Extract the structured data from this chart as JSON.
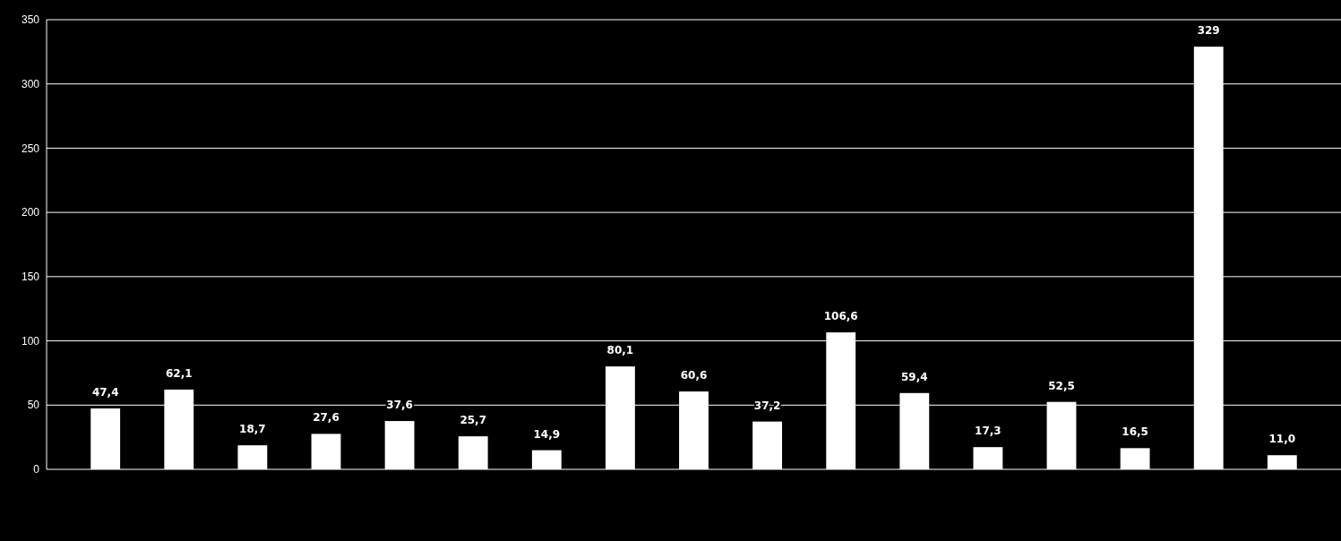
{
  "chart_data": {
    "type": "bar",
    "categories": [
      null,
      null,
      null,
      null,
      null,
      null,
      null,
      null,
      null,
      null,
      null,
      null,
      null,
      null,
      null,
      null,
      null
    ],
    "values": [
      47.4,
      62.1,
      18.7,
      27.6,
      37.6,
      25.7,
      14.9,
      80.1,
      60.6,
      37.2,
      106.6,
      59.4,
      17.3,
      52.5,
      16.5,
      329,
      11.0
    ],
    "value_labels": [
      "47,4",
      "62,1",
      "18,7",
      "27,6",
      "37,6",
      "25,7",
      "14,9",
      "80,1",
      "60,6",
      "37,2",
      "106,6",
      "59,4",
      "17,3",
      "52,5",
      "16,5",
      "329",
      "11,0"
    ],
    "color": "#ffffff",
    "ylim": [
      0,
      350
    ],
    "yticks": [
      0,
      50,
      100,
      150,
      200,
      250,
      300,
      350
    ],
    "grid": "y"
  }
}
